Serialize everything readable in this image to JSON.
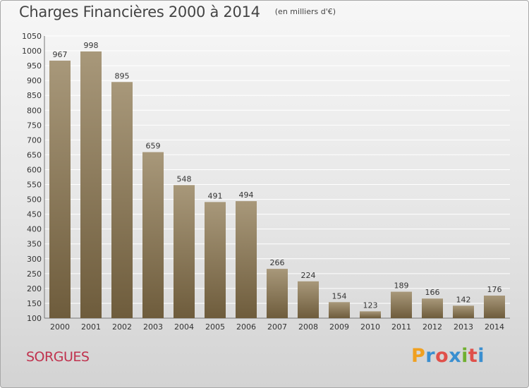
{
  "chart_data": {
    "type": "bar",
    "title": "Charges Financières 2000 à 2014",
    "subtitle": "(en milliers d'€)",
    "categories": [
      "2000",
      "2001",
      "2002",
      "2003",
      "2004",
      "2005",
      "2006",
      "2007",
      "2008",
      "2009",
      "2010",
      "2011",
      "2012",
      "2013",
      "2014"
    ],
    "values": [
      967,
      998,
      895,
      659,
      548,
      491,
      494,
      266,
      224,
      154,
      123,
      189,
      166,
      142,
      176
    ],
    "xlabel": "",
    "ylabel": "",
    "ylim": [
      100,
      1050
    ],
    "yticks": [
      100,
      150,
      200,
      250,
      300,
      350,
      400,
      450,
      500,
      550,
      600,
      650,
      700,
      750,
      800,
      850,
      900,
      950,
      1000,
      1050
    ],
    "grid": true,
    "bar_color_top": "#a8987a",
    "bar_color_bottom": "#6e5c3c",
    "grid_color": "#ffffff"
  },
  "footer": {
    "commune": "SORGUES",
    "logo_letters": [
      "P",
      "r",
      "o",
      "x",
      "i",
      "t",
      "i"
    ],
    "logo_colors": [
      "#f0a020",
      "#3a8fd0",
      "#e0504a",
      "#3a8fd0",
      "#70b030",
      "#e0504a",
      "#3a8fd0"
    ]
  }
}
